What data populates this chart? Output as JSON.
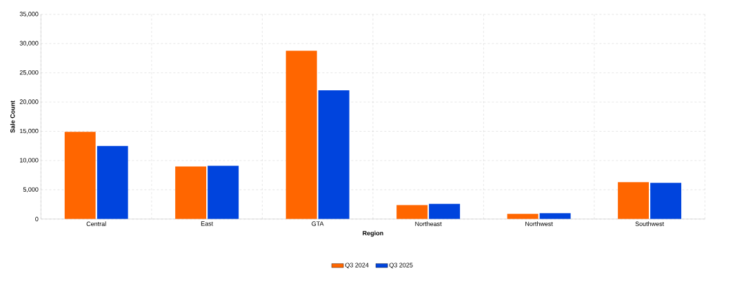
{
  "chart_data": {
    "type": "bar",
    "xlabel": "Region",
    "ylabel": "Sale Count",
    "categories": [
      "Central",
      "East",
      "GTA",
      "Northeast",
      "Northwest",
      "Southwest"
    ],
    "series": [
      {
        "name": "Q3 2024",
        "color": "#ff6600",
        "values": [
          14900,
          9000,
          28800,
          2400,
          900,
          6300
        ]
      },
      {
        "name": "Q3 2025",
        "color": "#0044dd",
        "values": [
          12500,
          9100,
          22000,
          2600,
          1000,
          6200
        ]
      }
    ],
    "ylim": [
      0,
      35000
    ],
    "yticks": [
      {
        "value": 0,
        "label": "0"
      },
      {
        "value": 5000,
        "label": "5,000"
      },
      {
        "value": 10000,
        "label": "10,000"
      },
      {
        "value": 15000,
        "label": "15,000"
      },
      {
        "value": 20000,
        "label": "20,000"
      },
      {
        "value": 25000,
        "label": "25,000"
      },
      {
        "value": 30000,
        "label": "30,000"
      },
      {
        "value": 35000,
        "label": "35,000"
      }
    ],
    "grid": true,
    "legend": "bottom"
  }
}
